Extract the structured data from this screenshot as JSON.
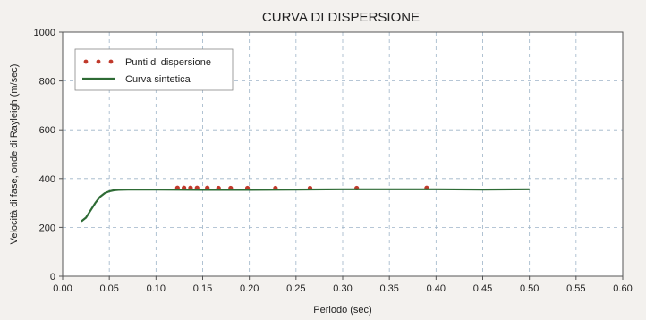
{
  "chart_data": {
    "type": "scatter",
    "title": "CURVA DI DISPERSIONE",
    "xlabel": "Periodo (sec)",
    "ylabel": "Velocità di fase, onde di Rayleigh (m/sec)",
    "xlim": [
      0.0,
      0.6
    ],
    "ylim": [
      0,
      1000
    ],
    "x_ticks": [
      "0.00",
      "0.05",
      "0.10",
      "0.15",
      "0.20",
      "0.25",
      "0.30",
      "0.35",
      "0.40",
      "0.45",
      "0.50",
      "0.55",
      "0.60"
    ],
    "y_ticks": [
      "0",
      "200",
      "400",
      "600",
      "800",
      "1000"
    ],
    "grid": true,
    "legend_position": "top-left",
    "series": [
      {
        "name": "Punti di dispersione",
        "kind": "points",
        "color": "#c0392b",
        "x": [
          0.123,
          0.13,
          0.137,
          0.144,
          0.155,
          0.167,
          0.18,
          0.198,
          0.228,
          0.265,
          0.315,
          0.39
        ],
        "y": [
          362,
          362,
          362,
          362,
          362,
          361,
          361,
          361,
          361,
          361,
          361,
          362
        ]
      },
      {
        "name": "Curva sintetica",
        "kind": "line",
        "color": "#2e6b35",
        "x": [
          0.02,
          0.025,
          0.03,
          0.035,
          0.04,
          0.045,
          0.05,
          0.055,
          0.06,
          0.07,
          0.08,
          0.1,
          0.15,
          0.2,
          0.25,
          0.3,
          0.35,
          0.4,
          0.45,
          0.5
        ],
        "y": [
          225,
          240,
          270,
          300,
          325,
          340,
          348,
          352,
          354,
          355,
          355,
          355,
          354,
          354,
          355,
          356,
          356,
          356,
          355,
          356
        ]
      }
    ]
  }
}
